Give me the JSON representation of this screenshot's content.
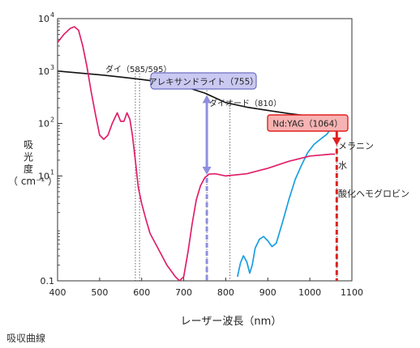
{
  "chart_data": {
    "type": "line",
    "caption": "吸収曲線",
    "xlabel": "レーザー波長（nm）",
    "ylabel": [
      "吸",
      "光",
      "度",
      "（ cm⁻¹ ）"
    ],
    "xlim": [
      400,
      1100
    ],
    "ylim": [
      0.1,
      10000
    ],
    "yscale": "log",
    "xticks": [
      "400",
      "500",
      "600",
      "700",
      "800",
      "900",
      "1000",
      "1100"
    ],
    "yticks": [
      {
        "v": 0.1,
        "base": "0.1",
        "exp": ""
      },
      {
        "v": 10,
        "base": "10",
        "exp": "1"
      },
      {
        "v": 100,
        "base": "10",
        "exp": "2"
      },
      {
        "v": 1000,
        "base": "10",
        "exp": "3"
      },
      {
        "v": 10000,
        "base": "10",
        "exp": "4"
      }
    ],
    "series": [
      {
        "name": "メラニン",
        "color": "#111111",
        "x": [
          400,
          500,
          550,
          600,
          650,
          700,
          750,
          800,
          850,
          900,
          950,
          1000,
          1050,
          1060
        ],
        "y": [
          1000,
          850,
          770,
          690,
          610,
          510,
          380,
          250,
          205,
          178,
          155,
          138,
          122,
          120
        ]
      },
      {
        "name": "水",
        "color": "#1a9ee0",
        "x": [
          828,
          835,
          842,
          850,
          857,
          863,
          870,
          880,
          890,
          900,
          910,
          920,
          935,
          950,
          965,
          980,
          995,
          1010,
          1025,
          1040,
          1055,
          1060
        ],
        "y": [
          0.12,
          0.22,
          0.3,
          0.23,
          0.14,
          0.2,
          0.42,
          0.62,
          0.7,
          0.58,
          0.45,
          0.52,
          1.3,
          3.5,
          8.5,
          16,
          28,
          40,
          50,
          62,
          90,
          105
        ]
      },
      {
        "name": "酸化ヘモグロビン",
        "color": "#e0206a",
        "x": [
          400,
          415,
          430,
          440,
          450,
          460,
          470,
          480,
          490,
          500,
          510,
          520,
          530,
          542,
          550,
          558,
          565,
          572,
          578,
          585,
          592,
          600,
          610,
          620,
          640,
          660,
          680,
          690,
          700,
          710,
          720,
          730,
          740,
          750,
          760,
          775,
          800,
          850,
          900,
          950,
          1000,
          1050,
          1060
        ],
        "y": [
          3500,
          5000,
          6500,
          7000,
          6000,
          3000,
          1200,
          400,
          150,
          60,
          50,
          60,
          100,
          160,
          110,
          110,
          160,
          120,
          60,
          20,
          6,
          3,
          1.5,
          0.8,
          0.4,
          0.2,
          0.12,
          0.1,
          0.12,
          0.35,
          1.2,
          3.5,
          6.5,
          9.2,
          10.8,
          11,
          10,
          11,
          14,
          19,
          24,
          26,
          26
        ]
      }
    ],
    "vlines": [
      {
        "label": "ダイ（585/595）",
        "x": [
          585,
          595
        ]
      },
      {
        "label": "アレキサンドライト（755）",
        "x": [
          755
        ]
      },
      {
        "label": "ダイオード（810）",
        "x": [
          810
        ]
      },
      {
        "label": "Nd:YAG（1064）",
        "x": [
          1064
        ]
      }
    ],
    "arrows": [
      {
        "x": 755,
        "top": 350,
        "bottom": 10.5,
        "color": "#8f8fe0"
      },
      {
        "x": 1064,
        "top": 115,
        "bottom": 38,
        "color": "#e02020"
      }
    ]
  }
}
